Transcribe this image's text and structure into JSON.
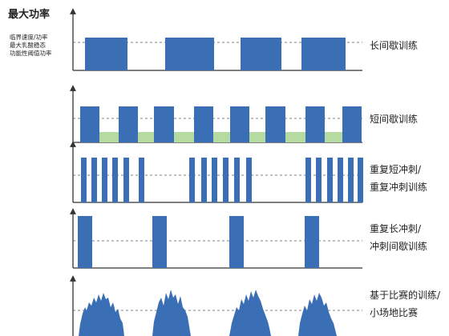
{
  "y_axis_title": "最大功率",
  "threshold_labels": [
    "临界速度/功率",
    "最大乳酸稳态",
    "功能性阈值功率"
  ],
  "panels": [
    {
      "label_lines": [
        "长间歇训练"
      ]
    },
    {
      "label_lines": [
        "短间歇训练"
      ]
    },
    {
      "label_lines": [
        "重复短冲刺/",
        "重复冲刺训练"
      ]
    },
    {
      "label_lines": [
        "重复长冲刺/",
        "冲刺间歇训练"
      ]
    },
    {
      "label_lines": [
        "基于比赛的训练/",
        "小场地比赛"
      ]
    }
  ],
  "colors": {
    "bar": "#3a6fb6",
    "recovery": "#b5dba0",
    "axis": "#333333"
  }
}
